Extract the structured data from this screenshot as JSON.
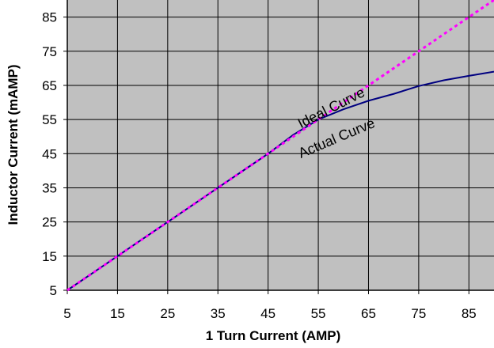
{
  "chart_data": {
    "type": "line",
    "xlabel": "1 Turn Current (AMP)",
    "ylabel": "Inductor Current (mAMP)",
    "xlim": [
      5,
      90
    ],
    "ylim": [
      5,
      90
    ],
    "xticks": [
      5,
      15,
      25,
      35,
      45,
      55,
      65,
      75,
      85
    ],
    "yticks": [
      5,
      15,
      25,
      35,
      45,
      55,
      65,
      75,
      85
    ],
    "xtick_labels": [
      "5",
      "15",
      "25",
      "35",
      "45",
      "55",
      "65",
      "75",
      "85"
    ],
    "ytick_labels": [
      "5",
      "15",
      "25",
      "35",
      "45",
      "55",
      "65",
      "75",
      "85"
    ],
    "grid": true,
    "plot_background": "#c0c0c0",
    "series": [
      {
        "key": "ideal",
        "style": "dotted",
        "color": "#ff00ff",
        "x": [
          5,
          10,
          15,
          20,
          25,
          30,
          35,
          40,
          45,
          50,
          55,
          60,
          65,
          70,
          75,
          80,
          85,
          90
        ],
        "y": [
          5,
          10,
          15,
          20,
          25,
          30,
          35,
          40,
          45,
          50,
          55,
          60,
          65,
          70,
          75,
          80,
          85,
          90
        ]
      },
      {
        "key": "actual",
        "style": "solid",
        "color": "#000080",
        "x": [
          5,
          10,
          15,
          20,
          25,
          30,
          35,
          40,
          45,
          50,
          55,
          60,
          65,
          70,
          75,
          80,
          85,
          90
        ],
        "y": [
          5,
          10,
          15,
          20,
          25,
          30,
          35,
          40,
          45,
          50.5,
          55,
          58,
          60.5,
          62.5,
          64.8,
          66.5,
          67.8,
          69
        ]
      }
    ],
    "annotations": [
      {
        "key": "ideal",
        "text": "Ideal Curve",
        "x": 58,
        "y": 57.2,
        "angle": -27
      },
      {
        "key": "actual",
        "text": "Actual Curve",
        "x": 59,
        "y": 48.3,
        "angle": -23
      }
    ]
  }
}
